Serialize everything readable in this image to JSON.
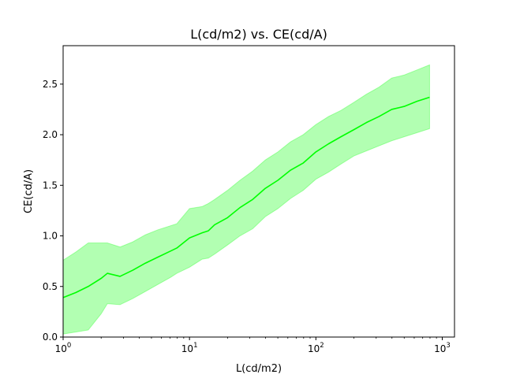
{
  "chart_data": {
    "type": "line",
    "title": "L(cd/m2) vs. CE(cd/A)",
    "xlabel": "L(cd/m2)",
    "ylabel": "CE(cd/A)",
    "x_scale": "log",
    "xlim": [
      1,
      1250
    ],
    "ylim": [
      0,
      2.88
    ],
    "grid": false,
    "x_ticks": [
      {
        "value": 1,
        "base": "10",
        "exp": "0"
      },
      {
        "value": 10,
        "base": "10",
        "exp": "1"
      },
      {
        "value": 100,
        "base": "10",
        "exp": "2"
      },
      {
        "value": 1000,
        "base": "10",
        "exp": "3"
      }
    ],
    "y_ticks": [
      {
        "value": 0,
        "label": "0.0"
      },
      {
        "value": 0.5,
        "label": "0.5"
      },
      {
        "value": 1.0,
        "label": "1.0"
      },
      {
        "value": 1.5,
        "label": "1.5"
      },
      {
        "value": 2.0,
        "label": "2.0"
      },
      {
        "value": 2.5,
        "label": "2.5"
      }
    ],
    "series": [
      {
        "color": "#00ff00",
        "band_color": "#00ff00",
        "band_opacity": 0.3,
        "points": [
          {
            "x": 1.0,
            "y": 0.39,
            "lo": 0.03,
            "hi": 0.76
          },
          {
            "x": 1.26,
            "y": 0.44,
            "lo": 0.05,
            "hi": 0.84
          },
          {
            "x": 1.58,
            "y": 0.5,
            "lo": 0.07,
            "hi": 0.93
          },
          {
            "x": 2.0,
            "y": 0.58,
            "lo": 0.23,
            "hi": 0.93
          },
          {
            "x": 2.24,
            "y": 0.63,
            "lo": 0.33,
            "hi": 0.93
          },
          {
            "x": 2.82,
            "y": 0.6,
            "lo": 0.32,
            "hi": 0.89
          },
          {
            "x": 3.55,
            "y": 0.66,
            "lo": 0.38,
            "hi": 0.94
          },
          {
            "x": 4.47,
            "y": 0.73,
            "lo": 0.45,
            "hi": 1.01
          },
          {
            "x": 5.62,
            "y": 0.79,
            "lo": 0.52,
            "hi": 1.06
          },
          {
            "x": 7.08,
            "y": 0.85,
            "lo": 0.59,
            "hi": 1.1
          },
          {
            "x": 7.94,
            "y": 0.88,
            "lo": 0.63,
            "hi": 1.12
          },
          {
            "x": 10.0,
            "y": 0.98,
            "lo": 0.69,
            "hi": 1.27
          },
          {
            "x": 12.6,
            "y": 1.03,
            "lo": 0.77,
            "hi": 1.29
          },
          {
            "x": 14.1,
            "y": 1.05,
            "lo": 0.78,
            "hi": 1.32
          },
          {
            "x": 15.8,
            "y": 1.11,
            "lo": 0.82,
            "hi": 1.36
          },
          {
            "x": 20.0,
            "y": 1.18,
            "lo": 0.91,
            "hi": 1.45
          },
          {
            "x": 25.1,
            "y": 1.28,
            "lo": 1.0,
            "hi": 1.55
          },
          {
            "x": 31.6,
            "y": 1.36,
            "lo": 1.07,
            "hi": 1.64
          },
          {
            "x": 39.8,
            "y": 1.47,
            "lo": 1.19,
            "hi": 1.75
          },
          {
            "x": 50.1,
            "y": 1.55,
            "lo": 1.27,
            "hi": 1.83
          },
          {
            "x": 63.1,
            "y": 1.65,
            "lo": 1.37,
            "hi": 1.93
          },
          {
            "x": 79.4,
            "y": 1.72,
            "lo": 1.45,
            "hi": 2.0
          },
          {
            "x": 100,
            "y": 1.83,
            "lo": 1.56,
            "hi": 2.1
          },
          {
            "x": 126,
            "y": 1.91,
            "lo": 1.63,
            "hi": 2.18
          },
          {
            "x": 158,
            "y": 1.98,
            "lo": 1.71,
            "hi": 2.24
          },
          {
            "x": 200,
            "y": 2.05,
            "lo": 1.79,
            "hi": 2.32
          },
          {
            "x": 251,
            "y": 2.12,
            "lo": 1.84,
            "hi": 2.4
          },
          {
            "x": 316,
            "y": 2.18,
            "lo": 1.89,
            "hi": 2.47
          },
          {
            "x": 398,
            "y": 2.25,
            "lo": 1.94,
            "hi": 2.56
          },
          {
            "x": 501,
            "y": 2.28,
            "lo": 1.98,
            "hi": 2.59
          },
          {
            "x": 631,
            "y": 2.33,
            "lo": 2.02,
            "hi": 2.64
          },
          {
            "x": 794,
            "y": 2.37,
            "lo": 2.06,
            "hi": 2.69
          }
        ]
      }
    ]
  }
}
